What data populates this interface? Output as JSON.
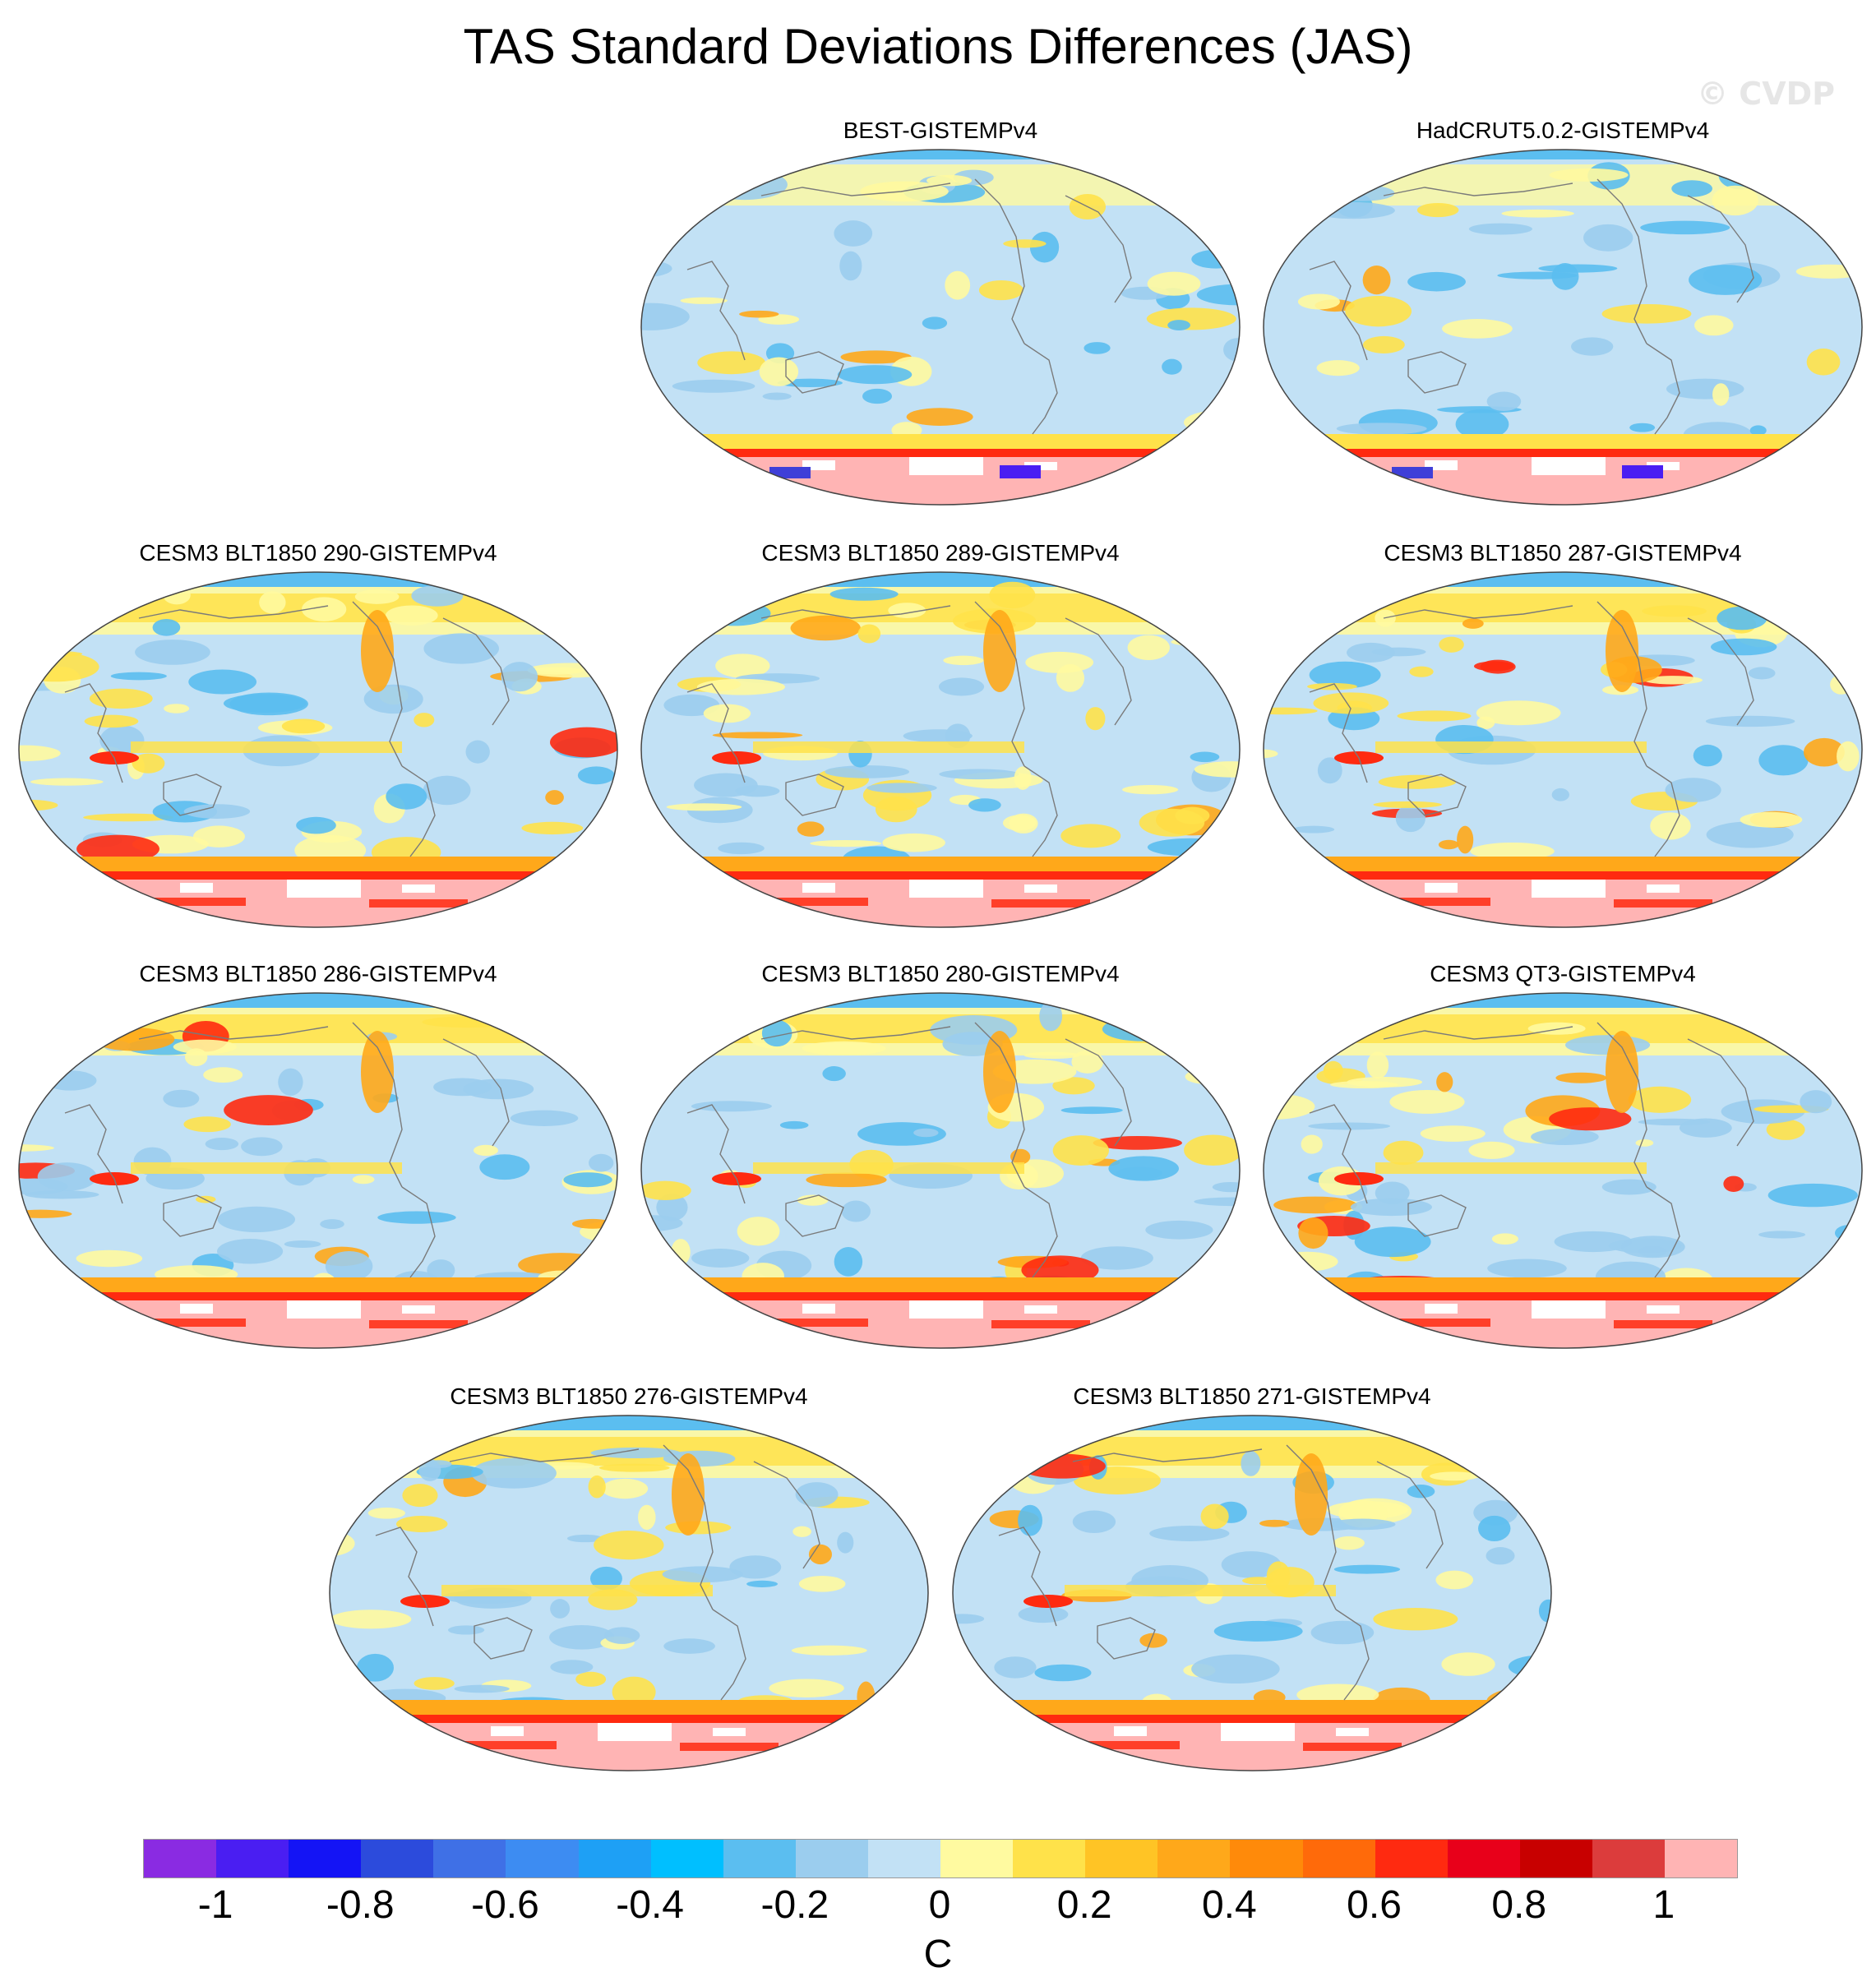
{
  "figure": {
    "title": "TAS Standard Deviations Differences (JAS)",
    "watermark": "© CVDP"
  },
  "panels": [
    {
      "label": "BEST-GISTEMPv4",
      "style": "obs1"
    },
    {
      "label": "HadCRUT5.0.2-GISTEMPv4",
      "style": "obs2"
    },
    {
      "label": "CESM3 BLT1850 290-GISTEMPv4",
      "style": "model"
    },
    {
      "label": "CESM3 BLT1850 289-GISTEMPv4",
      "style": "model"
    },
    {
      "label": "CESM3 BLT1850 287-GISTEMPv4",
      "style": "model"
    },
    {
      "label": "CESM3 BLT1850 286-GISTEMPv4",
      "style": "model"
    },
    {
      "label": "CESM3 BLT1850 280-GISTEMPv4",
      "style": "model"
    },
    {
      "label": "CESM3 QT3-GISTEMPv4",
      "style": "model"
    },
    {
      "label": "CESM3 BLT1850 276-GISTEMPv4",
      "style": "model"
    },
    {
      "label": "CESM3 BLT1850 271-GISTEMPv4",
      "style": "model"
    }
  ],
  "colorbar": {
    "units": "C",
    "colors": [
      "#8a2be2",
      "#4a1ef2",
      "#1414f5",
      "#2c4bdc",
      "#3f70e6",
      "#3d8cf2",
      "#1ea0f5",
      "#00bfff",
      "#5bbef0",
      "#9bcdee",
      "#c2e1f5",
      "#fffaa0",
      "#ffe24a",
      "#ffc425",
      "#ffa81a",
      "#ff8a0a",
      "#ff6a0a",
      "#ff2a10",
      "#e8001a",
      "#c80000",
      "#dc3c3c",
      "#ffb4b4"
    ],
    "tick_labels": [
      "-1",
      "-0.8",
      "-0.6",
      "-0.4",
      "-0.2",
      "0",
      "0.2",
      "0.4",
      "0.6",
      "0.8",
      "1"
    ],
    "ticks": [
      -1,
      -0.8,
      -0.6,
      -0.4,
      -0.2,
      0,
      0.2,
      0.4,
      0.6,
      0.8,
      1
    ],
    "range": [
      -1.1,
      1.1
    ]
  },
  "projection": "Robinson",
  "map_colors": {
    "base_ocean": "#c2e1f5",
    "cool": "#9bcdee",
    "cooler": "#5bbef0",
    "warm": "#fffaa0",
    "warmer": "#ffe24a",
    "orange": "#ffa81a",
    "red": "#ff2a10",
    "antarctic": "#ffb4b4",
    "coast": "#7a7a7a"
  }
}
